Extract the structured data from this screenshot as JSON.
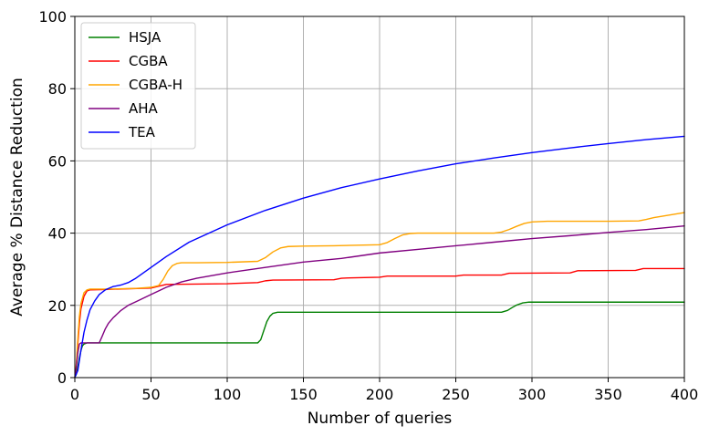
{
  "chart_data": {
    "type": "line",
    "xlabel": "Number of queries",
    "ylabel": "Average % Distance Reduction",
    "xlim": [
      0,
      400
    ],
    "ylim": [
      0,
      100
    ],
    "xticks": [
      0,
      50,
      100,
      150,
      200,
      250,
      300,
      350,
      400
    ],
    "yticks": [
      0,
      20,
      40,
      60,
      80,
      100
    ],
    "xtick_labels": [
      "0",
      "50",
      "100",
      "150",
      "200",
      "250",
      "300",
      "350",
      "400"
    ],
    "ytick_labels": [
      "0",
      "20",
      "40",
      "60",
      "80",
      "100"
    ],
    "grid": true,
    "legend_position": "top-left",
    "series": [
      {
        "name": "HSJA",
        "color": "#008000",
        "x": [
          0,
          1,
          2,
          3,
          4,
          5,
          6,
          8,
          10,
          20,
          50,
          100,
          120,
          122,
          124,
          126,
          128,
          130,
          133,
          136,
          150,
          200,
          250,
          280,
          284,
          287,
          290,
          294,
          298,
          300,
          350,
          400
        ],
        "y": [
          0,
          1,
          3,
          5.5,
          7.5,
          8.8,
          9.3,
          9.6,
          9.6,
          9.6,
          9.6,
          9.6,
          9.6,
          10.5,
          13,
          15.5,
          17,
          17.8,
          18.1,
          18.1,
          18.1,
          18.1,
          18.1,
          18.1,
          18.6,
          19.4,
          20.1,
          20.7,
          20.9,
          20.9,
          20.9,
          20.9
        ]
      },
      {
        "name": "CGBA",
        "color": "#ff0000",
        "x": [
          0,
          1,
          2,
          3,
          4,
          6,
          8,
          10,
          20,
          50,
          60,
          100,
          120,
          125,
          130,
          170,
          175,
          180,
          200,
          205,
          250,
          255,
          280,
          285,
          325,
          330,
          368,
          373,
          400
        ],
        "y": [
          0,
          3,
          9.5,
          15,
          19,
          22.5,
          24,
          24.3,
          24.4,
          24.8,
          25.8,
          26,
          26.3,
          26.8,
          27,
          27.1,
          27.5,
          27.6,
          27.8,
          28.1,
          28.1,
          28.4,
          28.4,
          28.9,
          29,
          29.6,
          29.7,
          30.2,
          30.2
        ]
      },
      {
        "name": "CGBA-H",
        "color": "#ffa500",
        "x": [
          0,
          1,
          2,
          3,
          4,
          6,
          8,
          10,
          20,
          40,
          50,
          55,
          58,
          61,
          64,
          67,
          70,
          80,
          100,
          120,
          125,
          130,
          135,
          140,
          150,
          170,
          200,
          205,
          210,
          215,
          220,
          225,
          250,
          275,
          280,
          285,
          290,
          295,
          300,
          310,
          350,
          370,
          375,
          380,
          390,
          400
        ],
        "y": [
          0,
          4,
          11,
          17,
          20.5,
          23.5,
          24.3,
          24.5,
          24.5,
          24.7,
          25,
          25.5,
          27.2,
          29.5,
          31,
          31.6,
          31.8,
          31.8,
          31.9,
          32.2,
          33.2,
          34.8,
          35.9,
          36.3,
          36.4,
          36.5,
          36.8,
          37.4,
          38.5,
          39.5,
          39.9,
          40,
          40,
          40,
          40.3,
          41,
          41.9,
          42.7,
          43.1,
          43.3,
          43.3,
          43.4,
          43.8,
          44.3,
          45,
          45.7
        ]
      },
      {
        "name": "AHA",
        "color": "#800080",
        "x": [
          0,
          1,
          2,
          3,
          4,
          5,
          8,
          12,
          16,
          18,
          20,
          22,
          25,
          30,
          35,
          40,
          50,
          60,
          70,
          80,
          100,
          125,
          150,
          175,
          200,
          225,
          250,
          275,
          300,
          325,
          350,
          375,
          400
        ],
        "y": [
          0,
          3,
          7,
          9.3,
          9.6,
          9.6,
          9.6,
          9.6,
          9.6,
          11.5,
          13.5,
          15,
          16.5,
          18.5,
          20,
          21,
          23,
          25,
          26.5,
          27.5,
          29,
          30.5,
          32,
          33,
          34.5,
          35.5,
          36.5,
          37.5,
          38.5,
          39.3,
          40.2,
          41,
          42
        ]
      },
      {
        "name": "TEA",
        "color": "#0000ff",
        "x": [
          0,
          2,
          4,
          6,
          8,
          10,
          13,
          16,
          20,
          25,
          30,
          35,
          40,
          50,
          60,
          75,
          100,
          125,
          150,
          175,
          200,
          225,
          250,
          275,
          300,
          325,
          350,
          375,
          400
        ],
        "y": [
          0,
          2,
          7.5,
          12.5,
          16,
          18.8,
          21.2,
          23,
          24.3,
          25.2,
          25.6,
          26.3,
          27.5,
          30.5,
          33.5,
          37.5,
          42.3,
          46.3,
          49.7,
          52.6,
          55,
          57.2,
          59.2,
          60.8,
          62.3,
          63.6,
          64.8,
          65.9,
          66.8
        ]
      }
    ]
  }
}
